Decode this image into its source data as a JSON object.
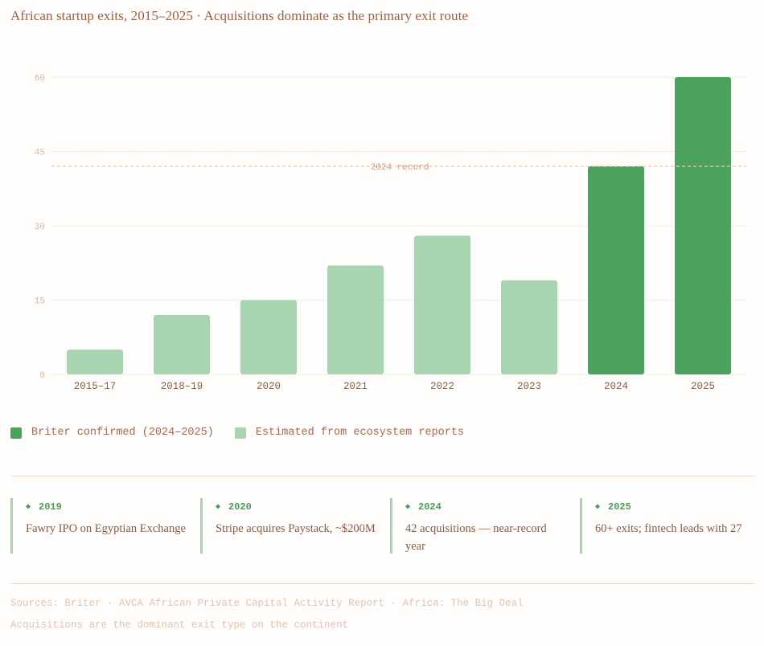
{
  "title": "African startup exits, 2015–2025 · Acquisitions dominate as the primary exit route",
  "chart_data": {
    "type": "bar",
    "categories": [
      "2015–17",
      "2018–19",
      "2020",
      "2021",
      "2022",
      "2023",
      "2024",
      "2025"
    ],
    "values": [
      5,
      12,
      15,
      22,
      28,
      19,
      42,
      60
    ],
    "confirmed": [
      false,
      false,
      false,
      false,
      false,
      false,
      true,
      true
    ],
    "ylim": [
      0,
      60
    ],
    "yticks": [
      0,
      15,
      30,
      45,
      60
    ],
    "reference_line": {
      "value": 42,
      "label": "2024 record"
    },
    "colors": {
      "confirmed": "#4aa25c",
      "estimated": "#a8d5b0",
      "reference": "#f0c8a8",
      "grid": "#f3ece6"
    }
  },
  "legend": {
    "confirmed_label": "Briter confirmed (2024–2025)",
    "estimated_label": "Estimated from ecosystem reports"
  },
  "milestones": [
    {
      "year": "2019",
      "text": "Fawry IPO on Egyptian Exchange"
    },
    {
      "year": "2020",
      "text": "Stripe acquires Paystack, ~$200M"
    },
    {
      "year": "2024",
      "text": "42 acquisitions — near-record year"
    },
    {
      "year": "2025",
      "text": "60+ exits; fintech leads with 27"
    }
  ],
  "footer": {
    "sources": "Sources: Briter · AVCA African Private Capital Activity Report · Africa: The Big Deal",
    "note": "Acquisitions are the dominant exit type on the continent"
  }
}
